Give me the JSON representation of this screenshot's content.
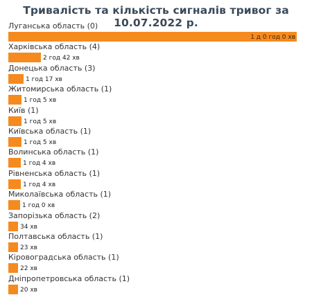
{
  "title": "Тривалість та кількість сигналів тривог за 10.07.2022 р.",
  "colors": {
    "bar": "#f58a1f",
    "title": "#3b4a5a"
  },
  "chart_data": {
    "type": "bar",
    "orientation": "horizontal",
    "title": "Тривалість та кількість сигналів тривог за 10.07.2022 р.",
    "unit": "minutes",
    "rows": [
      {
        "label": "Луганська область (0)",
        "value_label": "1 д 0 год 0 хв",
        "minutes": 1440
      },
      {
        "label": "Харківська область (4)",
        "value_label": "2 год 42 хв",
        "minutes": 162
      },
      {
        "label": "Донецька область (3)",
        "value_label": "1 год 17 хв",
        "minutes": 77
      },
      {
        "label": "Житомирська область (1)",
        "value_label": "1 год 5 хв",
        "minutes": 65
      },
      {
        "label": "Київ (1)",
        "value_label": "1 год 5 хв",
        "minutes": 65
      },
      {
        "label": "Київська область (1)",
        "value_label": "1 год 5 хв",
        "minutes": 65
      },
      {
        "label": "Волинська область (1)",
        "value_label": "1 год 4 хв",
        "minutes": 64
      },
      {
        "label": "Рівненська область (1)",
        "value_label": "1 год 4 хв",
        "minutes": 64
      },
      {
        "label": "Миколаївська область (1)",
        "value_label": "1 год 0 хв",
        "minutes": 60
      },
      {
        "label": "Запорізька область (2)",
        "value_label": "34 хв",
        "minutes": 34
      },
      {
        "label": "Полтавська область (1)",
        "value_label": "23 хв",
        "minutes": 23
      },
      {
        "label": "Кіровоградська область (1)",
        "value_label": "22 хв",
        "minutes": 22
      },
      {
        "label": "Дніпропетровська область (1)",
        "value_label": "20 хв",
        "minutes": 20
      }
    ]
  }
}
